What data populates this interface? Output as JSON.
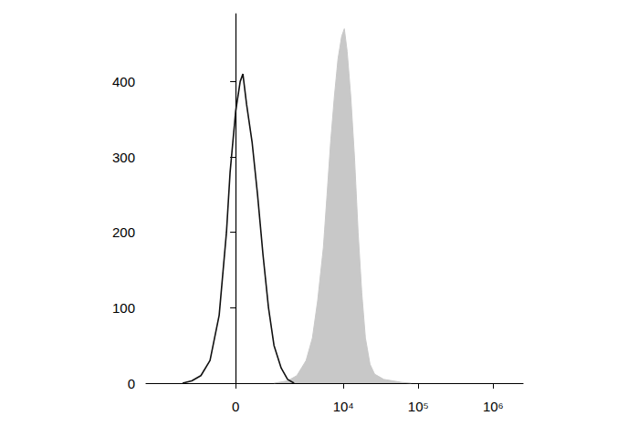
{
  "chart_data": {
    "type": "line",
    "xlim": [
      -5700,
      2500000
    ],
    "xticks": [
      0,
      {
        "value": 10000,
        "label": "10⁴"
      },
      {
        "value": 100000,
        "label": "10⁵"
      },
      {
        "value": 1000000,
        "label": "10⁶"
      }
    ],
    "ylim": [
      0,
      490
    ],
    "yticks": [
      0,
      100,
      200,
      300,
      400
    ],
    "grid": false,
    "series": [
      {
        "type": "line",
        "color": "#111111",
        "line_style": "solid",
        "x": [
          -1790,
          -1310,
          -935,
          -635,
          -385,
          -208,
          -124,
          0,
          103,
          165,
          250,
          385,
          530,
          690,
          870,
          1075,
          1390,
          1730,
          2140
        ],
        "values": [
          0,
          3,
          10,
          30,
          90,
          200,
          280,
          360,
          400,
          410,
          370,
          320,
          250,
          170,
          100,
          50,
          20,
          5,
          0
        ]
      },
      {
        "type": "area",
        "color": "#c8c8c8",
        "line_style": "solid",
        "x": [
          1075,
          1730,
          2340,
          3140,
          3830,
          4520,
          5390,
          6040,
          6750,
          7570,
          8470,
          9480,
          10300,
          11230,
          12560,
          14070,
          15740,
          17600,
          19700,
          22700,
          26100,
          34600,
          45800,
          60600,
          80200
        ],
        "values": [
          0,
          3,
          10,
          30,
          60,
          110,
          180,
          250,
          320,
          380,
          430,
          460,
          470,
          440,
          380,
          300,
          200,
          120,
          60,
          25,
          12,
          5,
          3,
          1,
          0
        ]
      }
    ]
  }
}
